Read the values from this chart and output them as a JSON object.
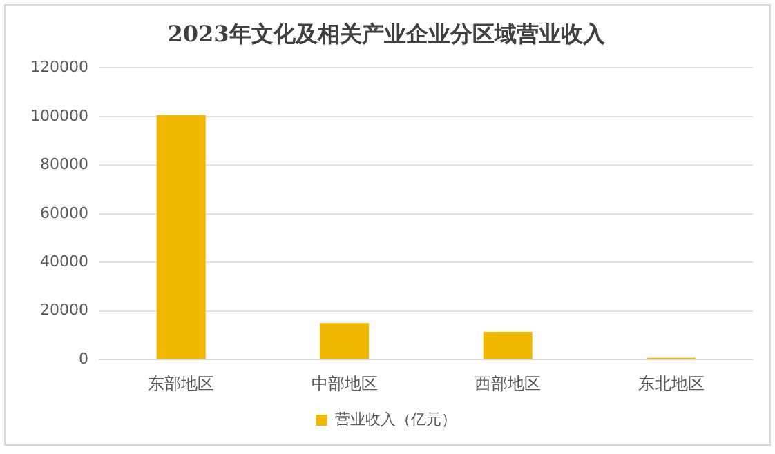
{
  "chart_data": {
    "type": "bar",
    "title": "2023年文化及相关产业企业分区域营业收入",
    "categories": [
      "东部地区",
      "中部地区",
      "西部地区",
      "东北地区"
    ],
    "series": [
      {
        "name": "营业收入（亿元）",
        "color": "#f0b800",
        "values": [
          100600,
          15000,
          11400,
          700
        ]
      }
    ],
    "ylim": [
      0,
      120000
    ],
    "yticks": [
      0,
      20000,
      40000,
      60000,
      80000,
      100000,
      120000
    ],
    "grid": "y",
    "legend": "bottom"
  }
}
